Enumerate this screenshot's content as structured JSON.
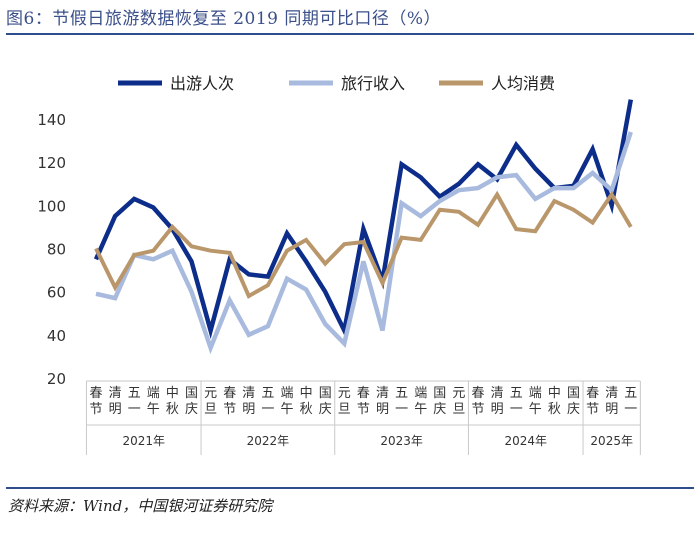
{
  "header": {
    "title": "图6：节假日旅游数据恢复至 2019 同期可比口径（%）"
  },
  "footer": {
    "source": "资料来源：Wind，中国银河证券研究院"
  },
  "colors": {
    "title": "#3b4f8a",
    "rule": "#2f4d8c"
  },
  "chart_data": {
    "type": "line",
    "ylim": [
      20,
      150
    ],
    "yticks": [
      20,
      40,
      60,
      80,
      100,
      120,
      140
    ],
    "grid": false,
    "legend_position": "top",
    "categories": [
      "春节",
      "清明",
      "五一",
      "端午",
      "中秋",
      "国庆",
      "元旦",
      "春节",
      "清明",
      "五一",
      "端午",
      "中秋",
      "国庆",
      "元旦",
      "春节",
      "清明",
      "五一",
      "端午",
      "国庆",
      "元旦",
      "春节",
      "清明",
      "五一",
      "端午",
      "中秋",
      "国庆",
      "春节",
      "清明",
      "五一"
    ],
    "groups": [
      {
        "label": "2021年",
        "count": 6
      },
      {
        "label": "2022年",
        "count": 7
      },
      {
        "label": "2023年",
        "count": 7
      },
      {
        "label": "2024年",
        "count": 6
      },
      {
        "label": "2025年",
        "count": 3
      }
    ],
    "series": [
      {
        "name": "出游人次",
        "color": "#0d2d8a",
        "width": 4.5,
        "values": [
          75,
          95,
          103,
          99,
          89,
          74,
          42,
          75,
          68,
          67,
          87,
          74,
          60,
          42,
          89,
          65,
          119,
          113,
          104,
          110,
          119,
          112,
          128,
          117,
          108,
          109,
          126,
          100,
          149
        ]
      },
      {
        "name": "旅行收入",
        "color": "#a9badf",
        "width": 4.5,
        "values": [
          59,
          57,
          77,
          75,
          79,
          60,
          34,
          56,
          40,
          44,
          66,
          61,
          45,
          36,
          74,
          42,
          101,
          95,
          102,
          107,
          108,
          113,
          114,
          103,
          108,
          108,
          115,
          107,
          134
        ]
      },
      {
        "name": "人均消费",
        "color": "#b9976b",
        "width": 4,
        "values": [
          80,
          62,
          77,
          79,
          90,
          81,
          79,
          78,
          58,
          63,
          79,
          84,
          73,
          82,
          83,
          64,
          85,
          84,
          98,
          97,
          91,
          105,
          89,
          88,
          102,
          98,
          92,
          105,
          90
        ]
      }
    ]
  }
}
